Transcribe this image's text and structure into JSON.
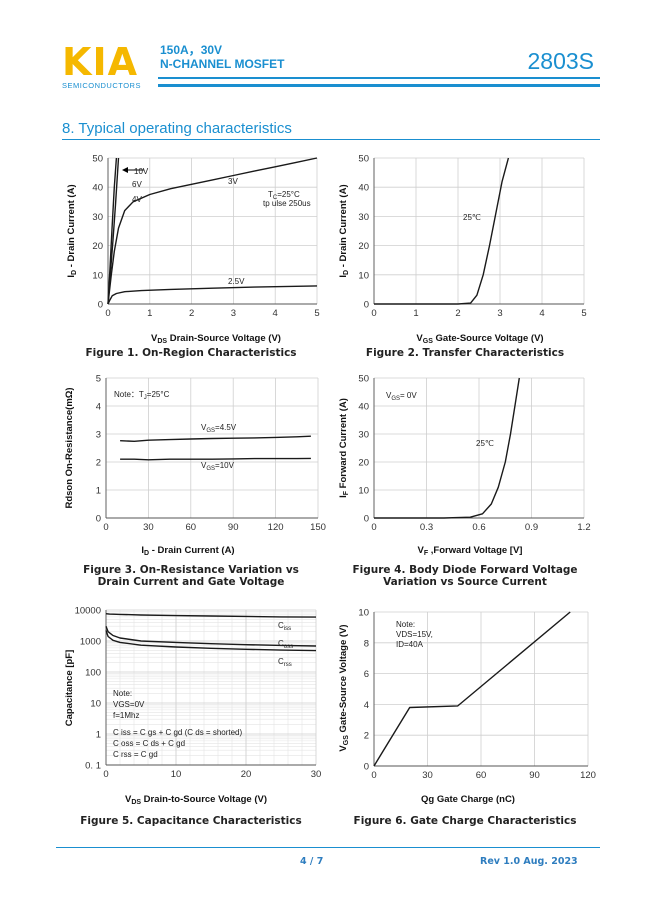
{
  "header": {
    "logo": "KIA",
    "logo_sub": "SEMICONDUCTORS",
    "product_line1": "150A，30V",
    "product_line2": "N-CHANNEL MOSFET",
    "part_number": "2803S"
  },
  "section_title": "8. Typical operating characteristics",
  "colors": {
    "accent": "#1a8fd0",
    "logo": "#f5b800"
  },
  "captions": {
    "fig1": "Figure 1. On-Region Characteristics",
    "fig2": "Figure 2. Transfer Characteristics",
    "fig3_l1": "Figure 3. On-Resistance Variation  vs",
    "fig3_l2": "Drain Current and Gate Voltage",
    "fig4_l1": "Figure 4. Body Diode Forward Voltage",
    "fig4_l2": "Variation vs Source Current",
    "fig5": "Figure 5. Capacitance Characteristics",
    "fig6": "Figure 6. Gate Charge Characteristics"
  },
  "footer": {
    "page": "4 / 7",
    "rev": "Rev 1.0 Aug. 2023"
  },
  "chart_data": [
    {
      "id": "fig1",
      "type": "line",
      "xticks": [
        "0",
        "1",
        "2",
        "3",
        "4",
        "5"
      ],
      "yticks": [
        "0",
        "10",
        "20",
        "30",
        "40",
        "50"
      ],
      "xlim": [
        0,
        5
      ],
      "ylim": [
        0,
        50
      ],
      "grid": true,
      "xlabel_main": "V",
      "xlabel_sub": "DS",
      "xlabel_rest": " Drain-Source Voltage (V)",
      "ylabel_main": "I",
      "ylabel_sub": "D",
      "ylabel_rest": " - Drain Current (A)",
      "note1_main": "T",
      "note1_sub": "C",
      "note1_rest": "=25°C",
      "note2": "tp ulse 250us",
      "series": [
        {
          "name": "10V",
          "x": [
            0,
            0.05,
            0.1,
            0.15,
            0.2
          ],
          "y": [
            0,
            13,
            27,
            40,
            50
          ]
        },
        {
          "name": "6V",
          "x": [
            0,
            0.06,
            0.12,
            0.18,
            0.25
          ],
          "y": [
            0,
            11,
            22,
            34,
            50
          ]
        },
        {
          "name": "4V",
          "x": [
            0,
            0.08,
            0.15,
            0.25,
            0.4,
            0.6,
            1.0,
            1.5,
            2.0,
            2.5,
            3.0,
            3.5,
            4.0,
            4.5,
            5.0
          ],
          "y": [
            0,
            10,
            18,
            26,
            32,
            35,
            37.5,
            39.5,
            41,
            42.5,
            44,
            45.5,
            47,
            48.5,
            50
          ]
        },
        {
          "name": "3V",
          "x": [],
          "y": []
        },
        {
          "name": "2.5V",
          "x": [
            0,
            0.05,
            0.1,
            0.2,
            0.4,
            0.8,
            1.5,
            2.5,
            3.5,
            5.0
          ],
          "y": [
            0,
            1.5,
            2.8,
            3.6,
            4.2,
            4.6,
            5.0,
            5.4,
            5.8,
            6.2
          ]
        }
      ]
    },
    {
      "id": "fig2",
      "type": "line",
      "xticks": [
        "0",
        "1",
        "2",
        "3",
        "4",
        "5"
      ],
      "yticks": [
        "0",
        "10",
        "20",
        "30",
        "40",
        "50"
      ],
      "xlim": [
        0,
        5
      ],
      "ylim": [
        0,
        50
      ],
      "grid": true,
      "xlabel_main": "V",
      "xlabel_sub": "GS",
      "xlabel_rest": " Gate-Source Voltage (V)",
      "ylabel_main": "I",
      "ylabel_sub": "D",
      "ylabel_rest": " - Drain Current (A)",
      "series": [
        {
          "name": "25℃",
          "x": [
            0,
            2.0,
            2.3,
            2.45,
            2.6,
            2.75,
            2.9,
            3.05,
            3.2
          ],
          "y": [
            0,
            0,
            0.3,
            3,
            10,
            20,
            31,
            42,
            50
          ]
        }
      ]
    },
    {
      "id": "fig3",
      "type": "line",
      "xticks": [
        "0",
        "30",
        "60",
        "90",
        "120",
        "150"
      ],
      "yticks": [
        "0",
        "1",
        "2",
        "3",
        "4",
        "5"
      ],
      "xlim": [
        0,
        150
      ],
      "ylim": [
        0,
        5
      ],
      "grid": true,
      "xlabel_main": "I",
      "xlabel_sub": "D",
      "xlabel_rest": " - Drain Current (A)",
      "ylabel_full": "Rdson On-Resistance(mΩ)",
      "note_main": "Note：T",
      "note_sub": "J",
      "note_rest": "=25°C",
      "series": [
        {
          "name": "VGS=4.5V",
          "label_main": "V",
          "label_sub": "GS",
          "label_rest": "=4.5V",
          "x": [
            10,
            20,
            30,
            45,
            60,
            75,
            90,
            105,
            120,
            135,
            145
          ],
          "y": [
            2.76,
            2.74,
            2.78,
            2.8,
            2.82,
            2.84,
            2.85,
            2.86,
            2.88,
            2.9,
            2.92
          ]
        },
        {
          "name": "VGS=10V",
          "label_main": "V",
          "label_sub": "GS",
          "label_rest": "=10V",
          "x": [
            10,
            20,
            30,
            45,
            60,
            75,
            90,
            105,
            120,
            135,
            145
          ],
          "y": [
            2.1,
            2.1,
            2.08,
            2.1,
            2.1,
            2.1,
            2.11,
            2.12,
            2.12,
            2.12,
            2.13
          ]
        }
      ]
    },
    {
      "id": "fig4",
      "type": "line",
      "xticks": [
        "0",
        "0.3",
        "0.6",
        "0.9",
        "1.2"
      ],
      "yticks": [
        "0",
        "10",
        "20",
        "30",
        "40",
        "50"
      ],
      "xlim": [
        0,
        1.2
      ],
      "ylim": [
        0,
        50
      ],
      "grid": true,
      "xlabel_main": "V",
      "xlabel_sub": "F",
      "xlabel_rest": " ,Forward Voltage [V]",
      "ylabel_main": "I",
      "ylabel_sub": "F",
      "ylabel_rest": " Forward Current (A)",
      "note_main": "V",
      "note_sub": "GS",
      "note_rest": "= 0V",
      "series": [
        {
          "name": "25℃",
          "x": [
            0,
            0.4,
            0.55,
            0.62,
            0.67,
            0.71,
            0.75,
            0.78,
            0.81,
            0.83
          ],
          "y": [
            0,
            0,
            0.3,
            1.5,
            5,
            11,
            20,
            30,
            42,
            50
          ]
        }
      ]
    },
    {
      "id": "fig5",
      "type": "line",
      "yscale": "log",
      "xticks": [
        "0",
        "10",
        "20",
        "30"
      ],
      "yticks": [
        "0. 1",
        "1",
        "10",
        "100",
        "1000",
        "10000"
      ],
      "xlim": [
        0,
        30
      ],
      "ylim": [
        0.1,
        10000
      ],
      "grid": true,
      "xlabel_main": "V",
      "xlabel_sub": "DS",
      "xlabel_rest": "  Drain-to-Source Voltage (V)",
      "ylabel_full": "Capacitance [pF]",
      "notes": [
        "Note:",
        "VGS=0V",
        "f=1Mhz",
        "C iss = C gs + C gd (C ds = shorted)",
        "C oss = C ds + C gd",
        "C rss = C gd"
      ],
      "series": [
        {
          "name": "Ciss",
          "label_main": "C",
          "label_sub": "iss",
          "x": [
            0,
            0.5,
            2,
            5,
            10,
            15,
            20,
            25,
            30
          ],
          "y": [
            7600,
            7400,
            7200,
            6900,
            6600,
            6400,
            6200,
            6000,
            5900
          ]
        },
        {
          "name": "Coss",
          "label_main": "C",
          "label_sub": "oss",
          "x": [
            0,
            0.3,
            1,
            2,
            5,
            10,
            15,
            20,
            25,
            30
          ],
          "y": [
            3000,
            2000,
            1500,
            1250,
            1000,
            900,
            820,
            760,
            720,
            690
          ]
        },
        {
          "name": "Crss",
          "label_main": "C",
          "label_sub": "rss",
          "x": [
            0,
            0.3,
            1,
            2,
            5,
            10,
            15,
            20,
            25,
            30
          ],
          "y": [
            2200,
            1400,
            1050,
            900,
            730,
            640,
            580,
            540,
            510,
            490
          ]
        }
      ]
    },
    {
      "id": "fig6",
      "type": "line",
      "xticks": [
        "0",
        "30",
        "60",
        "90",
        "120"
      ],
      "yticks": [
        "0",
        "2",
        "4",
        "6",
        "8",
        "10"
      ],
      "xlim": [
        0,
        120
      ],
      "ylim": [
        0,
        10
      ],
      "grid": true,
      "xlabel_full": "Qg Gate Charge (nC)",
      "ylabel_main": "V",
      "ylabel_sub": "GS",
      "ylabel_rest": " Gate-Source Voltage (V)",
      "notes": [
        "Note:",
        "VDS=15V,",
        "ID=40A"
      ],
      "series": [
        {
          "name": "VGS",
          "x": [
            0,
            20,
            47,
            110
          ],
          "y": [
            0,
            3.8,
            3.9,
            10
          ]
        }
      ]
    }
  ]
}
